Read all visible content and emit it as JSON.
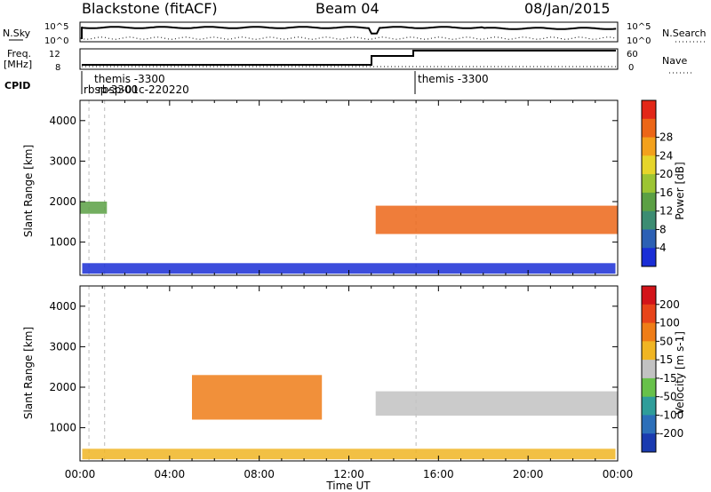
{
  "header": {
    "radar": "Blackstone (fitACF)",
    "beam": "Beam 04",
    "date": "08/Jan/2015"
  },
  "noise_panel": {
    "left_label": "N.Sky",
    "left_ticks": [
      "10^5",
      "10^0"
    ],
    "right_ticks": [
      "10^5",
      "10^0"
    ],
    "right_label": "N.Search"
  },
  "freq_panel": {
    "left_label_line1": "Freq.",
    "left_label_line2": "[MHz]",
    "left_ticks": [
      "12",
      "8"
    ],
    "right_ticks": [
      "60",
      "0"
    ],
    "right_label": "Nave"
  },
  "cpid_panel": {
    "label": "CPID",
    "annotations": [
      "themis -3300",
      "rbsp-3300",
      "rbsp-01c-220220",
      "themis -3300"
    ]
  },
  "colors": {
    "noise_line": "#000000",
    "gate_reference": "#9a9a9a",
    "ground_scatter": "#c0c0c0"
  },
  "chart_data": [
    {
      "type": "heatmap",
      "name": "power",
      "ylabel": "Slant Range [km]",
      "ylim": [
        180,
        4500
      ],
      "yticks": [
        1000,
        2000,
        3000,
        4000
      ],
      "xlim": [
        0,
        24
      ],
      "xticks": [
        0,
        4,
        8,
        12,
        16,
        20,
        24
      ],
      "colorbar_label": "Power [dB]",
      "colorbar_ticks": [
        4,
        8,
        12,
        16,
        20,
        24,
        28
      ],
      "colorbar_colors": [
        "#1a2ed6",
        "#2c60b4",
        "#3c8c72",
        "#5ba044",
        "#9cc433",
        "#e6d52a",
        "#f3a11c",
        "#ec6617",
        "#e22718"
      ],
      "structures": [
        {
          "desc": "E-region band",
          "t_start": 0.1,
          "t_end": 23.9,
          "range": [
            220,
            480
          ],
          "power_db": 5
        },
        {
          "desc": "Early morning band",
          "t_start": 0.0,
          "t_end": 1.2,
          "range": [
            1700,
            2000
          ],
          "power_db": 14
        },
        {
          "desc": "Afternoon strong band",
          "t_start": 13.2,
          "t_end": 24.0,
          "range": [
            1200,
            1900
          ],
          "power_db": 24
        }
      ]
    },
    {
      "type": "heatmap",
      "name": "velocity",
      "ylabel": "Slant Range [km]",
      "xlabel": "Time UT",
      "ylim": [
        180,
        4500
      ],
      "yticks": [
        1000,
        2000,
        3000,
        4000
      ],
      "xlim": [
        0,
        24
      ],
      "xticks": [
        0,
        4,
        8,
        12,
        16,
        20,
        24
      ],
      "xticklabels": [
        "00:00",
        "04:00",
        "08:00",
        "12:00",
        "16:00",
        "20:00",
        "00:00"
      ],
      "colorbar_label": "Velocity [m s-1]",
      "colorbar_ticks": [
        200,
        100,
        50,
        15,
        -15,
        -50,
        -100,
        -200
      ],
      "colorbar_colors": [
        "#1a3bb0",
        "#2c6fb9",
        "#2f9d9a",
        "#67c14a",
        "#c2c2c2",
        "#f0b523",
        "#ef7d17",
        "#e8441a",
        "#d3141a"
      ],
      "structures": [
        {
          "desc": "Ground scatter band",
          "t_start": 13.2,
          "t_end": 24.0,
          "range": [
            1300,
            1900
          ],
          "velocity": 0
        },
        {
          "desc": "Morning westward flow",
          "t_start": 5.0,
          "t_end": 10.8,
          "range": [
            1200,
            2300
          ],
          "velocity": -50
        },
        {
          "desc": "E-region mixed",
          "t_start": 0.1,
          "t_end": 23.9,
          "range": [
            220,
            480
          ],
          "velocity": -20
        }
      ]
    }
  ]
}
